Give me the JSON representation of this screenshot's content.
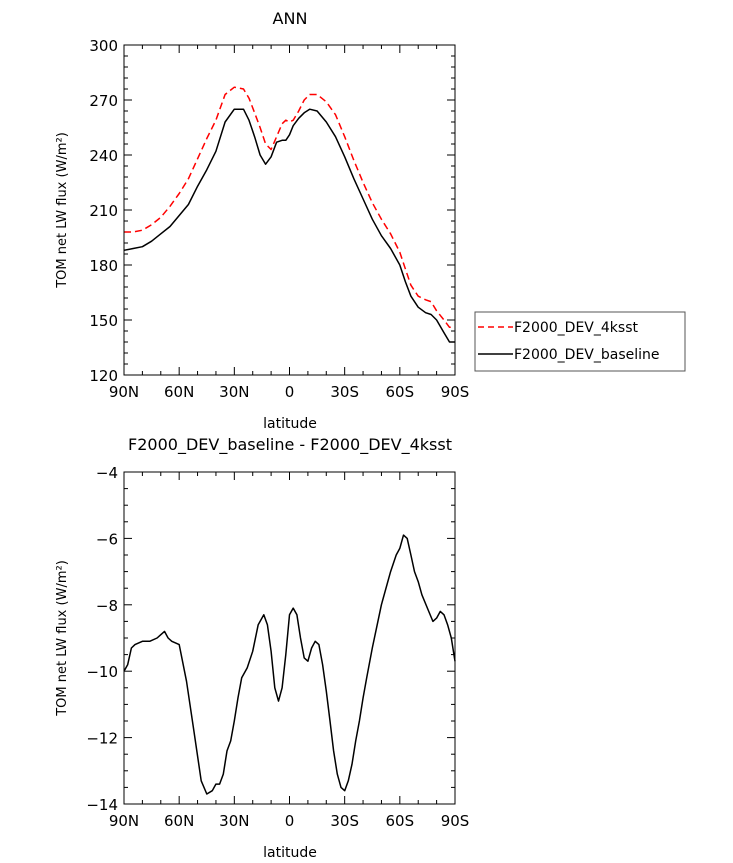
{
  "chart_data": [
    {
      "type": "line",
      "title": "ANN",
      "xlabel": "latitude",
      "ylabel": "TOM net LW flux (W/m²)",
      "ylim": [
        120,
        300
      ],
      "yticks": [
        120,
        150,
        180,
        210,
        240,
        270,
        300
      ],
      "xlim": [
        90,
        -90
      ],
      "xticks": [
        90,
        60,
        30,
        0,
        -30,
        -60,
        -90
      ],
      "xticklabels": [
        "90N",
        "60N",
        "30N",
        "0",
        "30S",
        "60S",
        "90S"
      ],
      "legend": "right",
      "series": [
        {
          "name": "F2000_DEV_4ksst",
          "color": "#ff0000",
          "dash": "dashed",
          "x": [
            90,
            85,
            80,
            75,
            70,
            65,
            60,
            55,
            50,
            45,
            40,
            35,
            30,
            25,
            22,
            19,
            16,
            13,
            10,
            7,
            4,
            2,
            0,
            -2,
            -5,
            -8,
            -11,
            -15,
            -20,
            -25,
            -30,
            -35,
            -40,
            -45,
            -50,
            -55,
            -60,
            -63,
            -66,
            -70,
            -74,
            -77,
            -80,
            -84,
            -87,
            -90
          ],
          "y": [
            198,
            198,
            199,
            202,
            206,
            212,
            219,
            227,
            238,
            249,
            259,
            273,
            277,
            276,
            271,
            263,
            255,
            246,
            243,
            250,
            257,
            259,
            258,
            259,
            264,
            270,
            273,
            273,
            269,
            262,
            250,
            237,
            225,
            214,
            205,
            197,
            187,
            178,
            169,
            163,
            161,
            160,
            155,
            150,
            146,
            146
          ]
        },
        {
          "name": "F2000_DEV_baseline",
          "color": "#000000",
          "dash": "solid",
          "x": [
            90,
            85,
            80,
            75,
            70,
            65,
            60,
            55,
            50,
            45,
            40,
            35,
            30,
            25,
            22,
            19,
            16,
            13,
            10,
            7,
            4,
            2,
            0,
            -2,
            -5,
            -8,
            -11,
            -15,
            -20,
            -25,
            -30,
            -35,
            -40,
            -45,
            -50,
            -55,
            -60,
            -63,
            -66,
            -70,
            -74,
            -77,
            -80,
            -84,
            -87,
            -90
          ],
          "y": [
            188,
            189,
            190,
            193,
            197,
            201,
            207,
            213,
            223,
            232,
            242,
            258,
            265,
            265,
            259,
            250,
            240,
            235,
            239,
            247,
            248,
            248,
            251,
            256,
            260,
            263,
            265,
            264,
            258,
            250,
            239,
            227,
            216,
            205,
            196,
            189,
            180,
            171,
            163,
            157,
            154,
            153,
            150,
            143,
            138,
            138
          ]
        }
      ]
    },
    {
      "type": "line",
      "title": "F2000_DEV_baseline - F2000_DEV_4ksst",
      "xlabel": "latitude",
      "ylabel": "TOM net LW flux (W/m²)",
      "ylim": [
        -14,
        -4
      ],
      "yticks": [
        -14,
        -12,
        -10,
        -8,
        -6,
        -4
      ],
      "xlim": [
        90,
        -90
      ],
      "xticks": [
        90,
        60,
        30,
        0,
        -30,
        -60,
        -90
      ],
      "xticklabels": [
        "90N",
        "60N",
        "30N",
        "0",
        "30S",
        "60S",
        "90S"
      ],
      "series": [
        {
          "color": "#000000",
          "dash": "solid",
          "x": [
            90,
            88,
            86,
            84,
            80,
            76,
            72,
            70,
            68,
            66,
            64,
            60,
            56,
            52,
            48,
            45,
            42,
            40,
            38,
            36,
            34,
            32,
            30,
            28,
            26,
            23,
            20,
            17,
            14,
            12,
            10,
            8,
            6,
            4,
            2,
            0,
            -2,
            -4,
            -6,
            -8,
            -10,
            -12,
            -14,
            -16,
            -18,
            -20,
            -22,
            -24,
            -26,
            -28,
            -30,
            -32,
            -34,
            -36,
            -38,
            -40,
            -42,
            -45,
            -50,
            -55,
            -58,
            -60,
            -62,
            -64,
            -66,
            -68,
            -70,
            -72,
            -75,
            -78,
            -80,
            -82,
            -84,
            -86,
            -88,
            -90
          ],
          "y": [
            -10.0,
            -9.8,
            -9.3,
            -9.2,
            -9.1,
            -9.1,
            -9.0,
            -8.9,
            -8.8,
            -9.0,
            -9.1,
            -9.2,
            -10.3,
            -11.8,
            -13.3,
            -13.7,
            -13.6,
            -13.4,
            -13.4,
            -13.1,
            -12.4,
            -12.1,
            -11.5,
            -10.8,
            -10.2,
            -9.9,
            -9.4,
            -8.6,
            -8.3,
            -8.6,
            -9.4,
            -10.5,
            -10.9,
            -10.5,
            -9.5,
            -8.3,
            -8.1,
            -8.3,
            -9.0,
            -9.6,
            -9.7,
            -9.3,
            -9.1,
            -9.2,
            -9.8,
            -10.6,
            -11.5,
            -12.4,
            -13.1,
            -13.5,
            -13.6,
            -13.3,
            -12.8,
            -12.1,
            -11.5,
            -10.8,
            -10.2,
            -9.3,
            -8.0,
            -7.0,
            -6.5,
            -6.3,
            -5.9,
            -6.0,
            -6.5,
            -7.0,
            -7.3,
            -7.7,
            -8.1,
            -8.5,
            -8.4,
            -8.2,
            -8.3,
            -8.6,
            -9.0,
            -9.7
          ]
        }
      ]
    }
  ]
}
